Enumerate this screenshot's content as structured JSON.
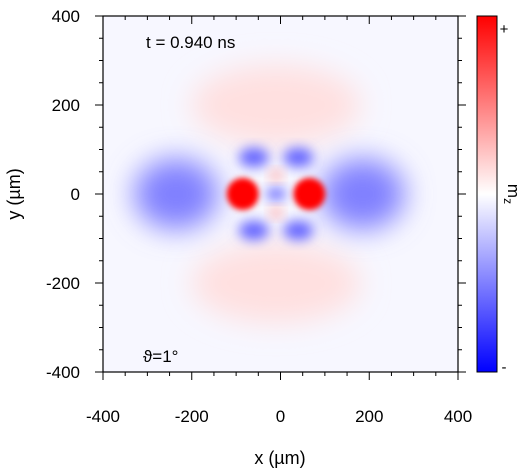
{
  "chart_data": {
    "type": "heatmap",
    "xlabel": "x (µm)",
    "ylabel": "y (µm)",
    "xlim": [
      -400,
      400
    ],
    "ylim": [
      -400,
      400
    ],
    "x_ticks": [
      -400,
      -200,
      0,
      200,
      400
    ],
    "y_ticks": [
      400,
      200,
      0,
      -200,
      -400
    ],
    "annotations": {
      "time": "t = 0.940 ns",
      "angle": "ϑ=1°"
    },
    "colorbar": {
      "label": "m",
      "label_subscript": "z",
      "max_label": "+",
      "min_label": "-",
      "colors": {
        "max": "#ff0000",
        "mid": "#ffffff",
        "min": "#0000ff"
      }
    },
    "features": [
      {
        "name": "red lobe left",
        "x": -85,
        "y": 0,
        "value": 1.0,
        "rx": 36,
        "ry": 36
      },
      {
        "name": "red lobe right",
        "x": 65,
        "y": 0,
        "value": 1.0,
        "rx": 36,
        "ry": 36
      },
      {
        "name": "center blue",
        "x": -10,
        "y": 0,
        "value": -0.6,
        "rx": 22,
        "ry": 14
      },
      {
        "name": "pink upper",
        "x": -10,
        "y": 42,
        "value": 0.35,
        "rx": 14,
        "ry": 12
      },
      {
        "name": "pink lower",
        "x": -10,
        "y": -42,
        "value": 0.35,
        "rx": 14,
        "ry": 12
      },
      {
        "name": "blue upper-left",
        "x": -60,
        "y": 82,
        "value": -0.6,
        "rx": 34,
        "ry": 22
      },
      {
        "name": "blue upper-right",
        "x": 40,
        "y": 82,
        "value": -0.6,
        "rx": 34,
        "ry": 22
      },
      {
        "name": "blue lower-left",
        "x": -60,
        "y": -82,
        "value": -0.6,
        "rx": 34,
        "ry": 22
      },
      {
        "name": "blue lower-right",
        "x": 40,
        "y": -82,
        "value": -0.6,
        "rx": 34,
        "ry": 22
      },
      {
        "name": "blue side lobe left",
        "x": -235,
        "y": 0,
        "value": -0.5,
        "rx": 95,
        "ry": 80
      },
      {
        "name": "blue side lobe right",
        "x": 185,
        "y": 0,
        "value": -0.5,
        "rx": 95,
        "ry": 80
      },
      {
        "name": "faint pink top",
        "x": -10,
        "y": 200,
        "value": 0.12,
        "rx": 190,
        "ry": 90
      },
      {
        "name": "faint pink bottom",
        "x": -10,
        "y": -200,
        "value": 0.12,
        "rx": 190,
        "ry": 90
      }
    ]
  }
}
